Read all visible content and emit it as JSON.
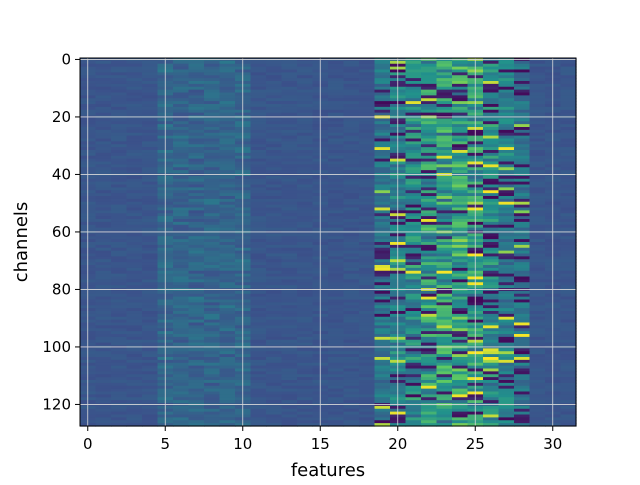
{
  "chart_data": {
    "type": "heatmap",
    "title": "",
    "xlabel": "features",
    "ylabel": "channels",
    "xlim": [
      -0.5,
      31.5
    ],
    "ylim": [
      127.5,
      -0.5
    ],
    "x_ticks": [
      {
        "value": 0,
        "label": "0"
      },
      {
        "value": 5,
        "label": "5"
      },
      {
        "value": 10,
        "label": "10"
      },
      {
        "value": 15,
        "label": "15"
      },
      {
        "value": 20,
        "label": "20"
      },
      {
        "value": 25,
        "label": "25"
      },
      {
        "value": 30,
        "label": "30"
      }
    ],
    "y_ticks": [
      {
        "value": 0,
        "label": "0"
      },
      {
        "value": 20,
        "label": "20"
      },
      {
        "value": 40,
        "label": "40"
      },
      {
        "value": 60,
        "label": "60"
      },
      {
        "value": 80,
        "label": "80"
      },
      {
        "value": 100,
        "label": "100"
      },
      {
        "value": 120,
        "label": "120"
      }
    ],
    "n_channels": 128,
    "n_features": 32,
    "grid": true,
    "colormap": "viridis",
    "colors": {
      "low": "#3b528b",
      "mid": "#21918c",
      "high": "#fde725",
      "dark": "#440154",
      "grid": "#d9d9d9"
    }
  }
}
